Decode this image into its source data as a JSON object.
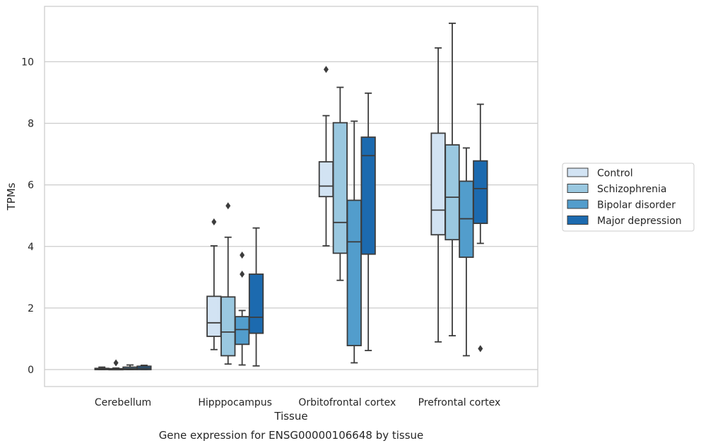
{
  "caption": "Gene expression for ENSG00000106648 by tissue",
  "chart_data": {
    "type": "box",
    "xlabel": "Tissue",
    "ylabel": "TPMs",
    "ylim": [
      -0.55,
      11.8
    ],
    "yticks": [
      0,
      2,
      4,
      6,
      8,
      10
    ],
    "grid": "horizontal",
    "legend_position": "right",
    "categories": [
      "Cerebellum",
      "Hipppocampus",
      "Orbitofrontal cortex",
      "Prefrontal cortex"
    ],
    "series": [
      {
        "name": "Control",
        "color": "#d2e3f3",
        "boxes": [
          {
            "whisker_low": 0.0,
            "q1": 0.0,
            "median": 0.02,
            "q3": 0.04,
            "whisker_high": 0.08,
            "outliers": []
          },
          {
            "whisker_low": 0.65,
            "q1": 1.08,
            "median": 1.52,
            "q3": 2.38,
            "whisker_high": 4.02,
            "outliers": [
              4.8
            ]
          },
          {
            "whisker_low": 4.02,
            "q1": 5.62,
            "median": 5.96,
            "q3": 6.75,
            "whisker_high": 8.25,
            "outliers": [
              9.75
            ]
          },
          {
            "whisker_low": 0.9,
            "q1": 4.38,
            "median": 5.18,
            "q3": 7.68,
            "whisker_high": 10.45,
            "outliers": []
          }
        ]
      },
      {
        "name": "Schizophrenia",
        "color": "#9ac8e0",
        "boxes": [
          {
            "whisker_low": 0.0,
            "q1": 0.0,
            "median": 0.01,
            "q3": 0.03,
            "whisker_high": 0.05,
            "outliers": [
              0.22
            ]
          },
          {
            "whisker_low": 0.18,
            "q1": 0.45,
            "median": 1.22,
            "q3": 2.36,
            "whisker_high": 4.3,
            "outliers": [
              5.32
            ]
          },
          {
            "whisker_low": 2.9,
            "q1": 3.78,
            "median": 4.78,
            "q3": 8.02,
            "whisker_high": 9.17,
            "outliers": []
          },
          {
            "whisker_low": 1.1,
            "q1": 4.22,
            "median": 5.6,
            "q3": 7.3,
            "whisker_high": 11.25,
            "outliers": []
          }
        ]
      },
      {
        "name": "Bipolar disorder",
        "color": "#529dcc",
        "boxes": [
          {
            "whisker_low": 0.0,
            "q1": 0.0,
            "median": 0.03,
            "q3": 0.08,
            "whisker_high": 0.15,
            "outliers": []
          },
          {
            "whisker_low": 0.15,
            "q1": 0.82,
            "median": 1.3,
            "q3": 1.72,
            "whisker_high": 1.92,
            "outliers": [
              3.1,
              3.72
            ]
          },
          {
            "whisker_low": 0.22,
            "q1": 0.78,
            "median": 4.15,
            "q3": 5.5,
            "whisker_high": 8.07,
            "outliers": []
          },
          {
            "whisker_low": 0.45,
            "q1": 3.65,
            "median": 4.9,
            "q3": 6.12,
            "whisker_high": 7.2,
            "outliers": []
          }
        ]
      },
      {
        "name": "Major depression",
        "color": "#1c6aaf",
        "boxes": [
          {
            "whisker_low": 0.0,
            "q1": 0.0,
            "median": 0.05,
            "q3": 0.11,
            "whisker_high": 0.14,
            "outliers": []
          },
          {
            "whisker_low": 0.12,
            "q1": 1.18,
            "median": 1.7,
            "q3": 3.1,
            "whisker_high": 4.6,
            "outliers": []
          },
          {
            "whisker_low": 0.62,
            "q1": 3.75,
            "median": 6.95,
            "q3": 7.55,
            "whisker_high": 8.98,
            "outliers": []
          },
          {
            "whisker_low": 4.1,
            "q1": 4.75,
            "median": 5.88,
            "q3": 6.78,
            "whisker_high": 8.62,
            "outliers": [
              0.68
            ]
          }
        ]
      }
    ]
  }
}
